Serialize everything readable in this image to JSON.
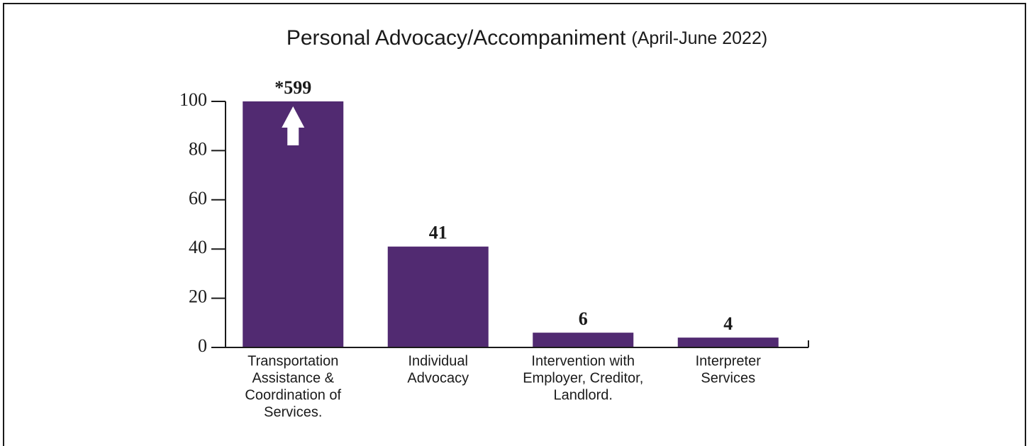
{
  "chart_data": {
    "type": "bar",
    "title": "Personal Advocacy/Accompaniment",
    "subtitle": "(April-June 2022)",
    "categories": [
      [
        "Transportation",
        "Assistance &",
        "Coordination of",
        "Services."
      ],
      [
        "Individual",
        "Advocacy"
      ],
      [
        "Intervention with",
        "Employer, Creditor,",
        "Landlord."
      ],
      [
        "Interpreter",
        "Services"
      ]
    ],
    "values": [
      599,
      41,
      6,
      4
    ],
    "value_labels": [
      "*599",
      "41",
      "6",
      "4"
    ],
    "color": "#512a71",
    "ylim": [
      0,
      100
    ],
    "yticks": [
      0,
      20,
      40,
      60,
      80,
      100
    ]
  }
}
